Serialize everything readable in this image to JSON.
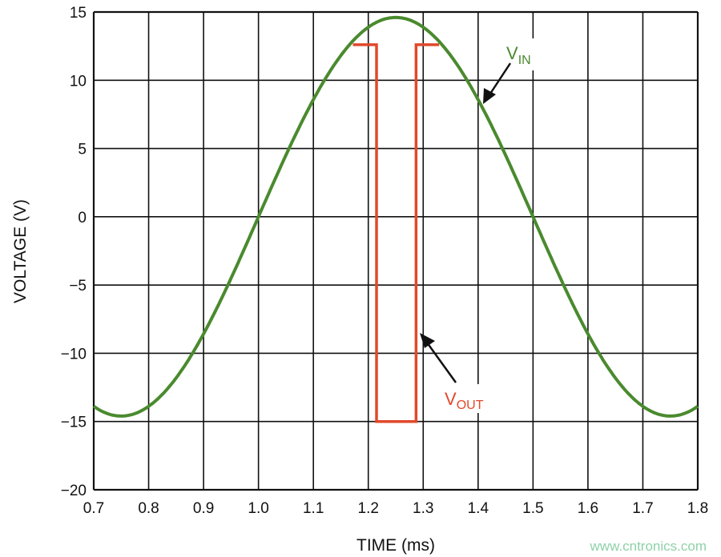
{
  "chart_data": {
    "type": "line",
    "xlabel": "TIME (ms)",
    "ylabel": "VOLTAGE (V)",
    "xlim": [
      0.7,
      1.8
    ],
    "ylim": [
      -20,
      15
    ],
    "xticks": [
      "0.7",
      "0.8",
      "0.9",
      "1.0",
      "1.1",
      "1.2",
      "1.3",
      "1.4",
      "1.5",
      "1.6",
      "1.7",
      "1.8"
    ],
    "yticks": [
      "15",
      "10",
      "5",
      "0",
      "−5",
      "−10",
      "−15",
      "−20"
    ],
    "grid": true,
    "series": [
      {
        "name": "VIN",
        "label_main": "V",
        "label_sub": "IN",
        "color": "#4a8a2e",
        "function": "14.6*sin(2*pi*(t-1.0)/1.0)",
        "amplitude": 14.6,
        "period_ms": 1.0,
        "rising_zero_ms": 1.0
      },
      {
        "name": "VOUT",
        "label_main": "V",
        "label_sub": "OUT",
        "color": "#e0492a",
        "x": [
          1.172,
          1.215,
          1.215,
          1.287,
          1.287,
          1.329
        ],
        "y": [
          12.6,
          12.6,
          -15,
          -15,
          12.6,
          12.6
        ]
      }
    ]
  },
  "watermark": "www.cntronics.com"
}
